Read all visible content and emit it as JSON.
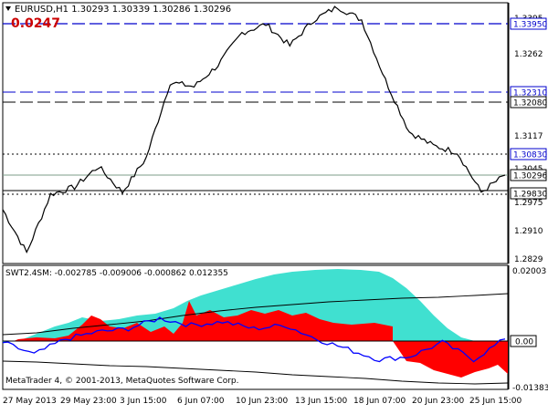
{
  "main_panel": {
    "symbol_header": "EURUSD,H1  1.30293 1.30339 1.30286 1.30296",
    "value_badge": "0.0247",
    "price_axis_labels": [
      "1.3395",
      "1.3395",
      "1.3262",
      "1.3231",
      "1.3208",
      "1.3117",
      "1.3083",
      "1.3045",
      "1.3029",
      "1.2983",
      "1.2975",
      "1.2910",
      "1.2829"
    ],
    "boxed_level_labels": [
      "1.33950",
      "1.32310",
      "1.32080",
      "1.30830",
      "1.30296",
      "1.29830"
    ],
    "line_colors": {
      "price": "#000000",
      "blue_level": "#0000cc",
      "black_level": "#000000",
      "value_badge": "#cc0000"
    }
  },
  "indicator_panel": {
    "header": "SWT2.4SM: -0.002785 -0.009006 -0.000862 0.012355",
    "right_labels": [
      "0.02003",
      "0.00",
      "-0.01383"
    ],
    "colors": {
      "positive_area": "#40e0d0",
      "negative_area": "#ff0000",
      "signal": "#0000ff",
      "envelope": "#000000"
    }
  },
  "footer": {
    "copyright": "MetaTrader 4, © 2001-2013, MetaQuotes Software Corp."
  },
  "time_axis": {
    "labels": [
      "27 May 2013",
      "29 May 23:00",
      "3 Jun 15:00",
      "6 Jun 07:00",
      "10 Jun 23:00",
      "13 Jun 15:00",
      "18 Jun 07:00",
      "20 Jun 23:00",
      "25 Jun 15:00"
    ]
  },
  "chart_data": {
    "type": "line",
    "symbol": "EURUSD",
    "timeframe": "H1",
    "x": [
      "27 May 2013",
      "29 May 23:00",
      "3 Jun 15:00",
      "6 Jun 07:00",
      "10 Jun 23:00",
      "13 Jun 15:00",
      "18 Jun 07:00",
      "20 Jun 23:00",
      "25 Jun 15:00"
    ],
    "price_series": {
      "values": [
        1.295,
        1.285,
        1.2985,
        1.3002,
        1.305,
        1.299,
        1.307,
        1.3245,
        1.3235,
        1.3285,
        1.336,
        1.338,
        1.333,
        1.339,
        1.342,
        1.339,
        1.325,
        1.313,
        1.3098,
        1.3083,
        1.299,
        1.303
      ]
    },
    "levels": [
      1.3395,
      1.3231,
      1.3208,
      1.3083,
      1.2983
    ],
    "current_price": 1.30296,
    "price_ylim": [
      1.2829,
      1.34
    ],
    "indicator": {
      "name": "SWT2.4SM",
      "signal_values": [
        -0.001,
        -0.0045,
        0.0,
        0.002,
        0.003,
        0.006,
        0.004,
        0.005,
        0.003,
        0.004,
        0.0,
        -0.003,
        -0.006,
        -0.005,
        -0.001,
        -0.006,
        0.0
      ],
      "ylim": [
        -0.01383,
        0.02003
      ]
    }
  }
}
